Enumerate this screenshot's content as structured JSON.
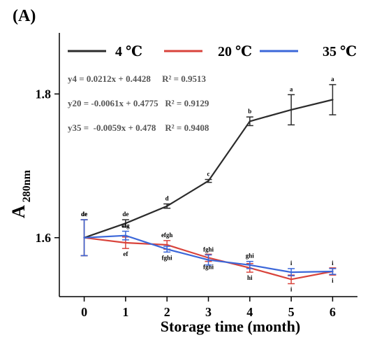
{
  "panel_label": "(A)",
  "legend": [
    {
      "label": "4 ℃",
      "color": "#2b2b2b"
    },
    {
      "label": "20 ℃",
      "color": "#d9433b"
    },
    {
      "label": "35 ℃",
      "color": "#3b67d9"
    }
  ],
  "equations": [
    "y4 = 0.0212x + 0.4428     R² = 0.9513",
    "y20 = -0.0061x + 0.4775   R² = 0.9129",
    "y35 =  -0.0059x + 0.478    R² = 0.9408"
  ],
  "colors": {
    "axis": "#000000",
    "equation_text": "#555555",
    "annotation_text": "#000000"
  },
  "chart_data": {
    "type": "line",
    "title": "",
    "xlabel": "Storage time (month)",
    "ylabel_main": "A",
    "ylabel_sub": "280nm",
    "x": [
      0,
      1,
      2,
      3,
      4,
      5,
      6
    ],
    "xticks": [
      "0",
      "1",
      "2",
      "3",
      "4",
      "5",
      "6"
    ],
    "yticks": [
      1.6,
      1.8
    ],
    "ytick_labels": [
      "1.6",
      "1.8"
    ],
    "xlim": [
      -0.6,
      6.6
    ],
    "ylim": [
      1.518,
      1.885
    ],
    "grid": false,
    "legend_position": "top",
    "series": [
      {
        "name": "4 ℃",
        "color": "#2b2b2b",
        "values": [
          1.6,
          1.62,
          1.644,
          1.679,
          1.762,
          1.778,
          1.792
        ],
        "errors": [
          0.025,
          0.005,
          0.003,
          0.002,
          0.006,
          0.021,
          0.021
        ],
        "letters": [
          "de",
          "de",
          "d",
          "c",
          "b",
          "a",
          "a"
        ],
        "letter_side": [
          "above",
          "above",
          "above",
          "above",
          "above",
          "above",
          "above"
        ]
      },
      {
        "name": "20 ℃",
        "color": "#d9433b",
        "values": [
          1.6,
          1.593,
          1.59,
          1.572,
          1.558,
          1.542,
          1.553
        ],
        "errors": [
          0.025,
          0.008,
          0.006,
          0.005,
          0.006,
          0.006,
          0.005
        ],
        "letters": [
          "de",
          "ef",
          "efgh",
          "fghi",
          "hi",
          "i",
          "i"
        ],
        "letter_side": [
          "above",
          "below",
          "above",
          "below",
          "below",
          "below",
          "below"
        ]
      },
      {
        "name": "35 ℃",
        "color": "#3b67d9",
        "values": [
          1.6,
          1.603,
          1.584,
          1.569,
          1.562,
          1.552,
          1.553
        ],
        "errors": [
          0.025,
          0.006,
          0.004,
          0.007,
          0.005,
          0.005,
          0.004
        ],
        "letters": [
          "de",
          "efg",
          "fghi",
          "fghi",
          "ghi",
          "i",
          "i"
        ],
        "letter_side": [
          "above",
          "above",
          "below",
          "above",
          "above",
          "above",
          "above"
        ]
      }
    ]
  }
}
